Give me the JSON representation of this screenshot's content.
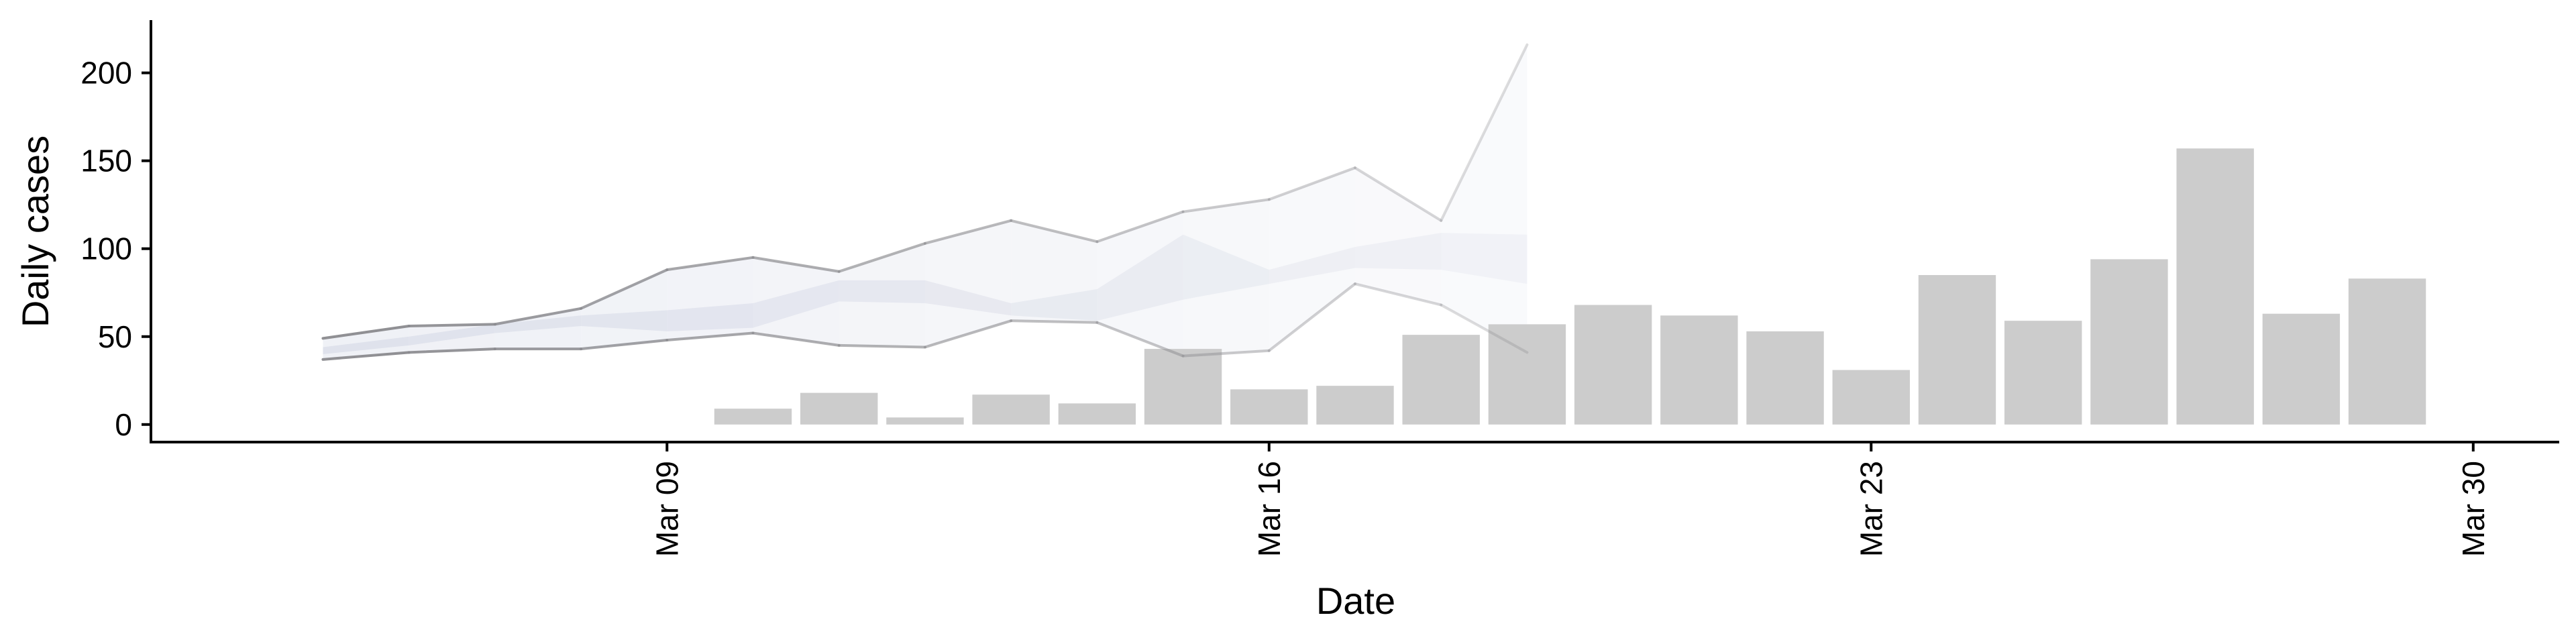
{
  "chart_data": {
    "type": "bar",
    "title": "",
    "xlabel": "Date",
    "ylabel": "Daily cases",
    "ylim": [
      -10,
      230
    ],
    "yticks": [
      0,
      50,
      100,
      150,
      200
    ],
    "xlim": [
      "2020-03-03",
      "2020-03-31"
    ],
    "xticks": [
      {
        "date": "2020-03-09",
        "label": "Mar 09"
      },
      {
        "date": "2020-03-16",
        "label": "Mar 16"
      },
      {
        "date": "2020-03-23",
        "label": "Mar 23"
      },
      {
        "date": "2020-03-30",
        "label": "Mar 30"
      }
    ],
    "grid": false,
    "bar_color": "#cccccc",
    "bars": {
      "dates": [
        "2020-03-10",
        "2020-03-11",
        "2020-03-12",
        "2020-03-13",
        "2020-03-14",
        "2020-03-15",
        "2020-03-16",
        "2020-03-17",
        "2020-03-18",
        "2020-03-19",
        "2020-03-20",
        "2020-03-21",
        "2020-03-22",
        "2020-03-23",
        "2020-03-24",
        "2020-03-25",
        "2020-03-26",
        "2020-03-27",
        "2020-03-28",
        "2020-03-29"
      ],
      "values": [
        9,
        18,
        4,
        17,
        12,
        43,
        20,
        22,
        51,
        57,
        68,
        62,
        53,
        31,
        85,
        59,
        94,
        157,
        63,
        83
      ]
    },
    "projection": {
      "dates": [
        "2020-03-05",
        "2020-03-06",
        "2020-03-07",
        "2020-03-08",
        "2020-03-09",
        "2020-03-10",
        "2020-03-11",
        "2020-03-12",
        "2020-03-13",
        "2020-03-14",
        "2020-03-15",
        "2020-03-16",
        "2020-03-17",
        "2020-03-18",
        "2020-03-19",
        "2020-03-20"
      ],
      "outer_upper": [
        49,
        56,
        57,
        66,
        88,
        95,
        87,
        103,
        116,
        104,
        121,
        128,
        146,
        116,
        216,
        null
      ],
      "outer_lower": [
        37,
        41,
        43,
        43,
        48,
        52,
        45,
        44,
        59,
        58,
        39,
        42,
        80,
        68,
        41,
        null
      ],
      "inner_upper": [
        44,
        50,
        57,
        62,
        65,
        69,
        82,
        82,
        69,
        77,
        108,
        88,
        101,
        109,
        108,
        null
      ],
      "inner_lower": [
        40,
        45,
        52,
        56,
        53,
        55,
        70,
        69,
        62,
        59,
        71,
        80,
        89,
        88,
        80,
        null
      ],
      "band_color": "#dcdfea",
      "line_color": "#8a8a8e"
    }
  }
}
